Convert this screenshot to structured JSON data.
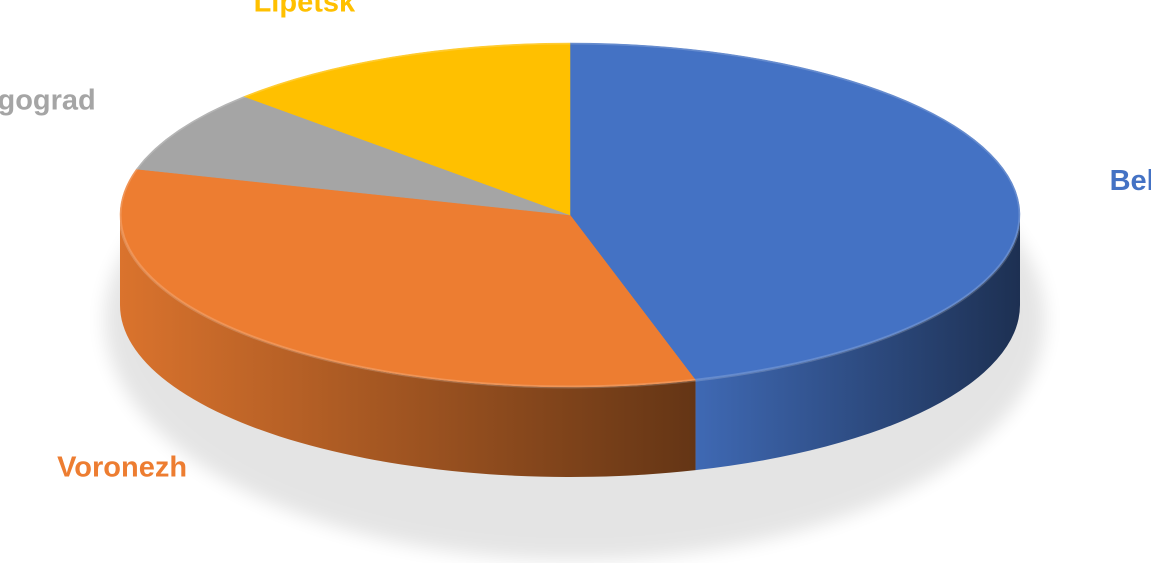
{
  "chart_data": {
    "type": "pie",
    "style": "3d",
    "title": "",
    "categories": [
      "Belgorod",
      "Voronezh",
      "Volgograd",
      "Lipetsk"
    ],
    "values": [
      45.5,
      33.8,
      7.8,
      12.9
    ],
    "colors": [
      "#4472C4",
      "#ED7D31",
      "#A5A5A5",
      "#FFC000"
    ],
    "legend": "none",
    "labels_shown": "category names outside slices"
  }
}
